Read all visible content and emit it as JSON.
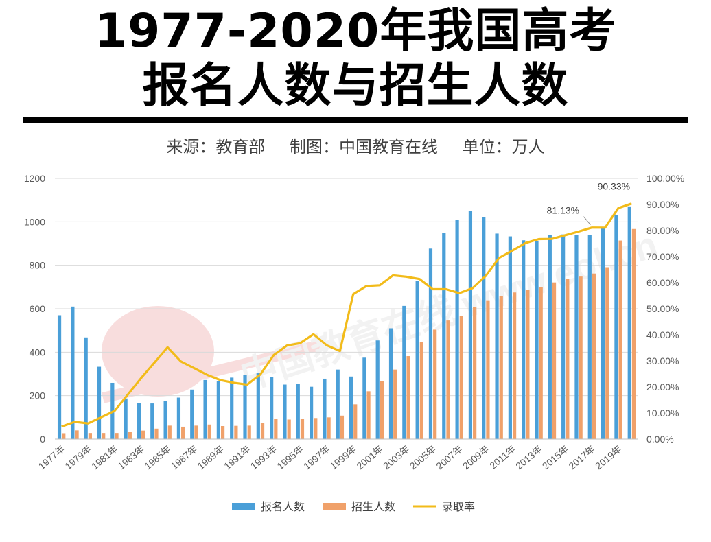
{
  "header": {
    "title_line1": "1977-2020年我国高考",
    "title_line2": "报名人数与招生人数",
    "source": "来源：教育部",
    "maker": "制图：中国教育在线",
    "unit": "单位：万人"
  },
  "chart_data": {
    "type": "bar",
    "categories": [
      "1977年",
      "1978年",
      "1979年",
      "1980年",
      "1981年",
      "1982年",
      "1983年",
      "1984年",
      "1985年",
      "1986年",
      "1987年",
      "1988年",
      "1989年",
      "1990年",
      "1991年",
      "1992年",
      "1993年",
      "1994年",
      "1995年",
      "1996年",
      "1997年",
      "1998年",
      "1999年",
      "2000年",
      "2001年",
      "2002年",
      "2003年",
      "2004年",
      "2005年",
      "2006年",
      "2007年",
      "2008年",
      "2009年",
      "2010年",
      "2011年",
      "2012年",
      "2013年",
      "2014年",
      "2015年",
      "2016年",
      "2017年",
      "2018年",
      "2019年",
      "2020年"
    ],
    "x_tick_labels": [
      "1977年",
      "1979年",
      "1981年",
      "1983年",
      "1985年",
      "1987年",
      "1989年",
      "1991年",
      "1993年",
      "1995年",
      "1997年",
      "1999年",
      "2001年",
      "2003年",
      "2005年",
      "2007年",
      "2009年",
      "2011年",
      "2013年",
      "2015年",
      "2017年",
      "2019年"
    ],
    "series": [
      {
        "name": "报名人数",
        "type": "bar",
        "axis": "left",
        "color": "#4a9fd8",
        "values": [
          570,
          610,
          468,
          333,
          259,
          187,
          167,
          164,
          176,
          191,
          228,
          272,
          266,
          283,
          296,
          303,
          286,
          251,
          253,
          241,
          278,
          320,
          288,
          375,
          454,
          510,
          613,
          729,
          877,
          950,
          1010,
          1050,
          1020,
          946,
          933,
          915,
          912,
          939,
          942,
          940,
          940,
          975,
          1031,
          1071
        ]
      },
      {
        "name": "招生人数",
        "type": "bar",
        "axis": "left",
        "color": "#f0a16a",
        "values": [
          27,
          40,
          28,
          28,
          28,
          32,
          39,
          48,
          62,
          57,
          62,
          67,
          60,
          61,
          62,
          75,
          92,
          90,
          93,
          97,
          100,
          108,
          160,
          220,
          268,
          320,
          382,
          447,
          504,
          546,
          566,
          608,
          639,
          657,
          675,
          688,
          700,
          721,
          737,
          748,
          762,
          791,
          914,
          967
        ]
      },
      {
        "name": "录取率",
        "type": "line",
        "axis": "right",
        "color": "#f2bb1a",
        "values": [
          4.8,
          6.6,
          6.0,
          8.4,
          10.8,
          17.1,
          23.4,
          29.3,
          35.2,
          29.8,
          27.2,
          24.6,
          22.6,
          21.6,
          20.9,
          24.8,
          32.2,
          35.9,
          36.8,
          40.2,
          36.0,
          33.8,
          55.6,
          58.7,
          59.0,
          62.8,
          62.3,
          61.4,
          57.5,
          57.5,
          56.0,
          57.9,
          62.6,
          69.5,
          72.3,
          75.2,
          76.7,
          76.8,
          78.2,
          79.6,
          81.13,
          81.1,
          88.6,
          90.33
        ]
      }
    ],
    "annotations": [
      {
        "label": "81.13%",
        "category": "2017年"
      },
      {
        "label": "90.33%",
        "category": "2020年"
      }
    ],
    "y_left": {
      "ticks": [
        "0",
        "200",
        "400",
        "600",
        "800",
        "1000",
        "1200"
      ],
      "ylim": [
        0,
        1200
      ]
    },
    "y_right": {
      "ticks": [
        "0.00%",
        "10.00%",
        "20.00%",
        "30.00%",
        "40.00%",
        "50.00%",
        "60.00%",
        "70.00%",
        "80.00%",
        "90.00%",
        "100.00%"
      ],
      "ylim": [
        0,
        100
      ]
    },
    "grid": true,
    "legend": "bottom-center",
    "watermark": "中国教育在线 www.eol.cn"
  }
}
